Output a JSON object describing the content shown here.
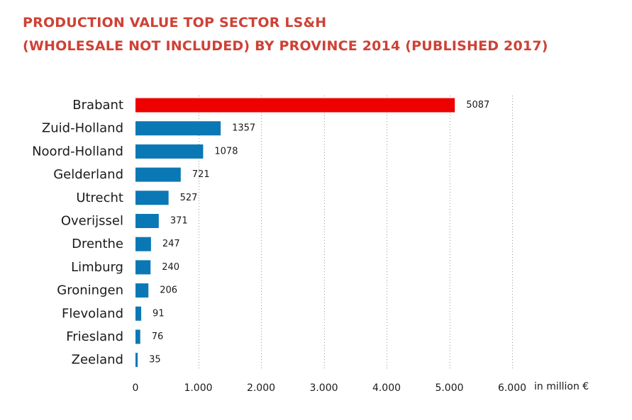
{
  "header": {
    "title_line1": "PRODUCTION VALUE TOP SECTOR LS&H",
    "title_line2": "(WHOLESALE NOT INCLUDED) BY PROVINCE 2014 (PUBLISHED 2017)"
  },
  "chart_data": {
    "type": "bar",
    "orientation": "horizontal",
    "title": "PRODUCTION VALUE TOP SECTOR LS&H (WHOLESALE NOT INCLUDED) BY PROVINCE 2014 (PUBLISHED 2017)",
    "xlabel": "in million €",
    "ylabel": "",
    "categories": [
      "Brabant",
      "Zuid-Holland",
      "Noord-Holland",
      "Gelderland",
      "Utrecht",
      "Overijssel",
      "Drenthe",
      "Limburg",
      "Groningen",
      "Flevoland",
      "Friesland",
      "Zeeland"
    ],
    "values": [
      5087,
      1357,
      1078,
      721,
      527,
      371,
      247,
      240,
      206,
      91,
      76,
      35
    ],
    "value_labels": [
      "5087",
      "1357",
      "1078",
      "721",
      "527",
      "371",
      "247",
      "240",
      "206",
      "91",
      "76",
      "35"
    ],
    "xlim": [
      0,
      6000
    ],
    "x_ticks": [
      0,
      1000,
      2000,
      3000,
      4000,
      5000,
      6000
    ],
    "x_tick_labels": [
      "0",
      "1.000",
      "2.000",
      "3.000",
      "4.000",
      "5.000",
      "6.000"
    ],
    "grid": "vertical dotted",
    "highlight_category": "Brabant",
    "colors": {
      "title": "#cf4135",
      "highlight_bar": "#ee0000",
      "bar": "#0a78b5",
      "grid": "#9a9a9a",
      "text": "#1a1a1a"
    }
  }
}
